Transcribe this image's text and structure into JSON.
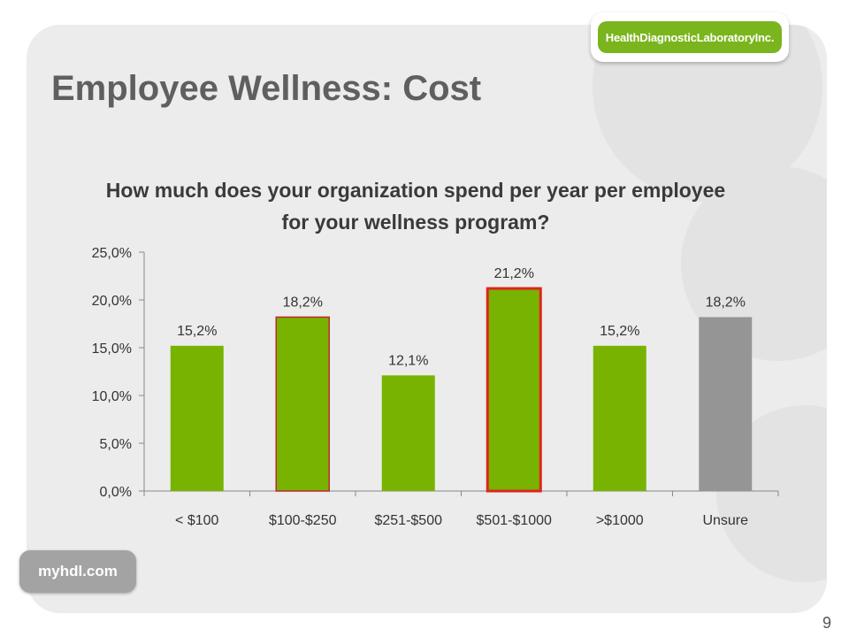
{
  "slide": {
    "title": "Employee Wellness: Cost",
    "page_number": "9",
    "logo_top": "HealthDiagnosticLaboratoryInc.",
    "logo_bottom": "myhdl.com",
    "colors": {
      "bar_green": "#77b300",
      "bar_gray": "#959595",
      "highlight": "#e0241b",
      "panel": "#ececec",
      "title": "#5f5f5f"
    }
  },
  "chart_data": {
    "type": "bar",
    "title": "How much does your organization spend per year per employee for your wellness program?",
    "categories": [
      "< $100",
      "$100-$250",
      "$251-$500",
      "$501-$1000",
      ">$1000",
      "Unsure"
    ],
    "values": [
      15.2,
      18.2,
      12.1,
      21.2,
      15.2,
      18.2
    ],
    "data_labels": [
      "15,2%",
      "18,2%",
      "12,1%",
      "21,2%",
      "15,2%",
      "18,2%"
    ],
    "bar_colors": [
      "#77b300",
      "#77b300",
      "#77b300",
      "#77b300",
      "#77b300",
      "#959595"
    ],
    "bar_outlines": [
      "none",
      "#c0262c",
      "none",
      "#e0241b",
      "none",
      "none"
    ],
    "ylim": [
      0,
      25
    ],
    "yticks": [
      0,
      5,
      10,
      15,
      20,
      25
    ],
    "ytick_labels": [
      "0,0%",
      "5,0%",
      "10,0%",
      "15,0%",
      "20,0%",
      "25,0%"
    ],
    "xlabel": "",
    "ylabel": "",
    "grid": false,
    "legend": "none"
  }
}
